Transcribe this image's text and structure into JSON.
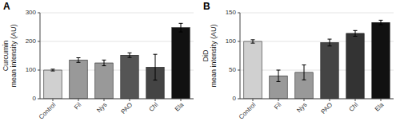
{
  "chart_data": [
    {
      "type": "bar",
      "title": "A",
      "ylabel": "Curcumin\nmean intensity (AU)",
      "categories": [
        "Control",
        "Fil",
        "Nys",
        "PAO",
        "Chl",
        "Ela"
      ],
      "values": [
        100,
        135,
        125,
        152,
        110,
        248
      ],
      "errors": [
        3,
        8,
        10,
        8,
        45,
        15
      ],
      "colors": [
        "#d0d0d0",
        "#999999",
        "#999999",
        "#555555",
        "#444444",
        "#111111"
      ],
      "ylim": [
        0,
        300
      ],
      "yticks": [
        0,
        100,
        200,
        300
      ]
    },
    {
      "type": "bar",
      "title": "B",
      "ylabel": "DiD\nmean intensity (AU)",
      "categories": [
        "Control",
        "Fil",
        "Nys",
        "PAO",
        "Chl",
        "Ela"
      ],
      "values": [
        100,
        40,
        46,
        98,
        114,
        133
      ],
      "errors": [
        3,
        10,
        13,
        6,
        5,
        4
      ],
      "colors": [
        "#d0d0d0",
        "#999999",
        "#999999",
        "#444444",
        "#333333",
        "#111111"
      ],
      "ylim": [
        0,
        150
      ],
      "yticks": [
        0,
        50,
        100,
        150
      ]
    }
  ]
}
